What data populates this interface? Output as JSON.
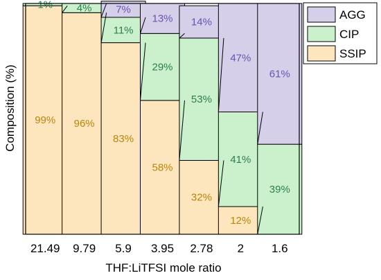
{
  "chart_data": {
    "type": "bar",
    "stacked": true,
    "categories": [
      "21.49",
      "9.79",
      "5.9",
      "3.95",
      "2.78",
      "2",
      "1.6"
    ],
    "series": [
      {
        "name": "SSIP",
        "values": [
          99,
          96,
          83,
          58,
          32,
          12,
          0
        ],
        "color": "#fde6bd",
        "label_color": "#b8860b"
      },
      {
        "name": "CIP",
        "values": [
          1,
          4,
          11,
          29,
          53,
          41,
          39
        ],
        "color": "#cbf1cc",
        "label_color": "#2e7d4f"
      },
      {
        "name": "AGG",
        "values": [
          0,
          0,
          7,
          13,
          14,
          47,
          61
        ],
        "color": "#d6cfe9",
        "label_color": "#6a54b0"
      }
    ],
    "data_labels": [
      [
        "99%",
        "96%",
        "83%",
        "58%",
        "32%",
        "12%",
        ""
      ],
      [
        "1%",
        "4%",
        "11%",
        "29%",
        "53%",
        "41%",
        "39%"
      ],
      [
        "",
        "",
        "7%",
        "13%",
        "14%",
        "47%",
        "61%"
      ]
    ],
    "xlabel": "THF:LiTFSI mole ratio",
    "ylabel": "Composition (%)",
    "ylim": [
      0,
      100
    ],
    "legend": {
      "placement": "top-right",
      "order": [
        "AGG",
        "CIP",
        "SSIP"
      ]
    },
    "grid": false
  }
}
